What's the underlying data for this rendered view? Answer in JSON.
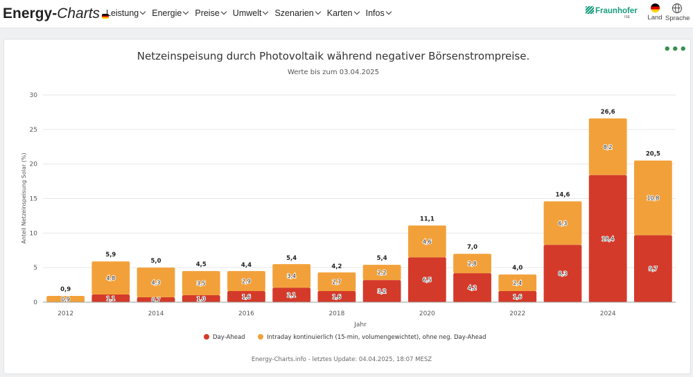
{
  "header": {
    "logo_part1": "Energy-",
    "logo_part2": "Charts",
    "nav": [
      "Leistung",
      "Energie",
      "Preise",
      "Umwelt",
      "Szenarien",
      "Karten",
      "Infos"
    ],
    "partner": "Fraunhofer",
    "partner_sub": "ISE",
    "land_label": "Land",
    "language_label": "Sprache"
  },
  "colors": {
    "day_ahead": "#d43a2a",
    "intraday": "#f2a13a",
    "grid": "#e6e6e6",
    "accent": "#3a8f4f"
  },
  "footer": {
    "credit": "Energy-Charts.info - letztes Update: 04.04.2025, 18:07 MESZ"
  },
  "chart_data": {
    "type": "bar",
    "stacked": true,
    "title": "Netzeinspeisung durch Photovoltaik während negativer Börsenstrompreise.",
    "subtitle": "Werte bis zum 03.04.2025",
    "xlabel": "Jahr",
    "ylabel": "Anteil Netzeinspeisung Solar (%)",
    "ylim": [
      0,
      30
    ],
    "yticks": [
      0,
      5,
      10,
      15,
      20,
      25,
      30
    ],
    "categories": [
      "2012",
      "2013",
      "2014",
      "2015",
      "2016",
      "2017",
      "2018",
      "2019",
      "2020",
      "2021",
      "2022",
      "2023",
      "2024",
      "2025"
    ],
    "xtick_labels": [
      "2012",
      "",
      "2014",
      "",
      "2016",
      "",
      "2018",
      "",
      "2020",
      "",
      "2022",
      "",
      "2024",
      ""
    ],
    "series": [
      {
        "name": "Day-Ahead",
        "values": [
          0,
          1.1,
          0.7,
          1.0,
          1.6,
          2.1,
          1.6,
          3.2,
          6.5,
          4.2,
          1.6,
          8.3,
          18.4,
          9.7
        ],
        "labels": [
          "",
          "1,1",
          "0,7",
          "1,0",
          "1,6",
          "2,1",
          "1,6",
          "3,2",
          "6,5",
          "4,2",
          "1,6",
          "8,3",
          "18,4",
          "9,7"
        ]
      },
      {
        "name": "Intraday kontinuierlich (15-min, volumengewichtet), ohne neg. Day-Ahead",
        "values": [
          0.9,
          4.8,
          4.3,
          3.5,
          2.9,
          3.4,
          2.7,
          2.2,
          4.6,
          2.8,
          2.4,
          6.3,
          8.2,
          10.8
        ],
        "labels": [
          "0,9",
          "4,8",
          "4,3",
          "3,5",
          "2,9",
          "3,4",
          "2,7",
          "2,2",
          "4,6",
          "2,8",
          "2,4",
          "6,3",
          "8,2",
          "10,8"
        ]
      }
    ],
    "totals": [
      0.9,
      5.9,
      5.0,
      4.5,
      4.4,
      5.4,
      4.2,
      5.4,
      11.1,
      7.0,
      4.0,
      14.6,
      26.6,
      20.5
    ],
    "total_labels": [
      "0,9",
      "5,9",
      "5,0",
      "4,5",
      "4,4",
      "5,4",
      "4,2",
      "5,4",
      "11,1",
      "7,0",
      "4,0",
      "14,6",
      "26,6",
      "20,5"
    ],
    "legend_position": "bottom-center",
    "grid": true
  }
}
